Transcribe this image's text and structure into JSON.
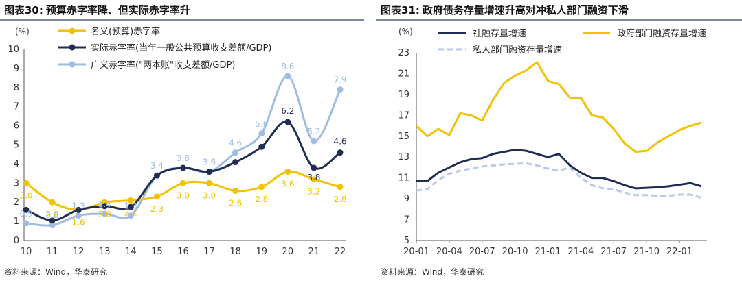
{
  "charts": {
    "left": {
      "title_prefix": "图表30:",
      "title": "预算赤字率降、但实际赤字率升",
      "source": "资料来源：Wind，华泰研究",
      "unit": "(%)"
    },
    "right": {
      "title_prefix": "图表31:",
      "title": "政府债务存量增速升高对冲私人部门融资下滑",
      "source": "资料来源：Wind，华泰研究",
      "unit": "(%)"
    }
  },
  "colors": {
    "navy": "#1f2d55",
    "gold": "#f2c200",
    "lightblue": "#9fbde3",
    "dashblue": "#b8c8ea"
  },
  "chart_data": [
    {
      "type": "line",
      "categories": [
        "10",
        "11",
        "12",
        "13",
        "14",
        "15",
        "16",
        "17",
        "18",
        "19",
        "20",
        "21",
        "22"
      ],
      "ylim": [
        0,
        10
      ],
      "yticks": [
        "0",
        "1",
        "2",
        "3",
        "4",
        "5",
        "6",
        "7",
        "8",
        "9",
        "10"
      ],
      "ylabel": "(%)",
      "legend_position": "top-left",
      "series": [
        {
          "name": "名义(预算)赤字率",
          "color": "#f2c200",
          "values": [
            3.0,
            2.0,
            1.6,
            2.0,
            2.1,
            2.3,
            3.0,
            3.0,
            2.6,
            2.8,
            3.6,
            3.2,
            2.8
          ],
          "labels": [
            "3.0",
            "2.0",
            "1.6",
            "2.0",
            "2.1",
            "2.3",
            "3.0",
            "3.0",
            "2.6",
            "2.8",
            "3.6",
            "3.2",
            "2.8"
          ]
        },
        {
          "name": "实际赤字率(当年一般公共预算收支差额/GDP)",
          "color": "#1f2d55",
          "values": [
            1.6,
            1.05,
            1.6,
            1.8,
            1.75,
            3.4,
            3.8,
            3.6,
            4.1,
            4.9,
            6.2,
            3.8,
            4.6
          ],
          "labels": [
            "",
            "",
            "",
            "",
            "",
            "",
            "",
            "",
            "",
            "",
            "6.2",
            "3.8",
            "4.6"
          ]
        },
        {
          "name": "广义赤字率(\"两本账\"收支差额/GDP)",
          "color": "#9fbde3",
          "values": [
            0.9,
            0.8,
            1.3,
            1.4,
            1.3,
            3.4,
            3.8,
            3.6,
            4.6,
            5.6,
            8.6,
            5.2,
            7.9
          ],
          "labels": [
            "0.9",
            "0.8",
            "1.3",
            "1.4",
            "1.3",
            "3.4",
            "3.8",
            "3.6",
            "4.6",
            "5.6",
            "8.6",
            "5.2",
            "7.9"
          ]
        }
      ]
    },
    {
      "type": "line",
      "xtick_labels": [
        "20-01",
        "20-04",
        "20-07",
        "20-10",
        "21-01",
        "21-04",
        "21-07",
        "21-10",
        "22-01"
      ],
      "points": 27,
      "ylim": [
        5,
        23
      ],
      "yticks": [
        "5",
        "7",
        "9",
        "11",
        "13",
        "15",
        "17",
        "19",
        "21",
        "23"
      ],
      "ylabel": "(%)",
      "legend_position": "top",
      "series": [
        {
          "name": "社融存量增速",
          "color": "#1f2d55",
          "style": "solid",
          "values": [
            10.7,
            10.7,
            11.5,
            12.0,
            12.5,
            12.8,
            12.9,
            13.3,
            13.5,
            13.7,
            13.6,
            13.3,
            13.0,
            13.3,
            12.2,
            11.5,
            11.0,
            11.0,
            10.7,
            10.3,
            10.0,
            10.05,
            10.1,
            10.2,
            10.35,
            10.5,
            10.2
          ]
        },
        {
          "name": "政府部门融资存量增速",
          "color": "#f2c200",
          "style": "solid",
          "values": [
            16.0,
            15.0,
            15.7,
            15.1,
            17.2,
            17.0,
            16.5,
            18.5,
            20.1,
            20.8,
            21.3,
            22.1,
            20.3,
            20.0,
            18.7,
            18.7,
            17.0,
            16.8,
            15.7,
            14.3,
            13.5,
            13.6,
            14.4,
            15.0,
            15.6,
            16.0,
            16.3
          ]
        },
        {
          "name": "私人部门融资存量增速",
          "color": "#b8c8ea",
          "style": "dashed",
          "values": [
            9.8,
            9.9,
            10.8,
            11.4,
            11.7,
            11.9,
            12.1,
            12.2,
            12.3,
            12.35,
            12.4,
            12.2,
            11.9,
            11.7,
            12.0,
            11.0,
            10.3,
            10.0,
            9.9,
            9.6,
            9.35,
            9.35,
            9.3,
            9.3,
            9.4,
            9.4,
            9.1
          ]
        }
      ]
    }
  ]
}
